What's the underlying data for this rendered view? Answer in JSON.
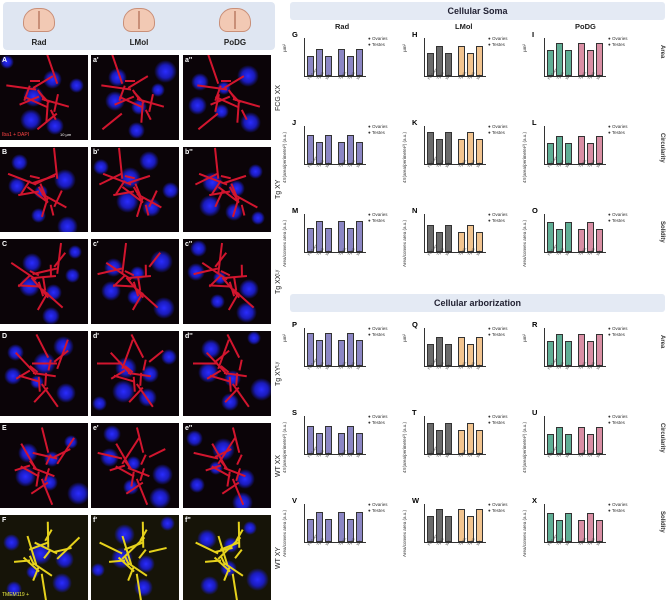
{
  "regions": [
    "Rad",
    "LMol",
    "PoDG"
  ],
  "rows": [
    {
      "letter": "A",
      "sub1": "a'",
      "sub2": "a''",
      "label": "FCG XX"
    },
    {
      "letter": "B",
      "sub1": "b'",
      "sub2": "b''",
      "label": "Tg XY"
    },
    {
      "letter": "C",
      "sub1": "c'",
      "sub2": "c''",
      "label": "Tg XXᴸʸ"
    },
    {
      "letter": "D",
      "sub1": "d'",
      "sub2": "d''",
      "label": "Tg XYᴸʸ"
    },
    {
      "letter": "E",
      "sub1": "e'",
      "sub2": "e''",
      "label": "WT XX"
    },
    {
      "letter": "F",
      "sub1": "f'",
      "sub2": "f''",
      "label": "WT XY"
    }
  ],
  "stain_a": "Iba1 + DAPI",
  "stain_f": "TMEM119 +",
  "scale": "10 µm",
  "sections": {
    "soma": "Cellular Soma",
    "arbor": "Cellular arborization"
  },
  "legend": {
    "ovaries": "Ovaries",
    "testes": "Testes"
  },
  "xticks": [
    "FCG XX",
    "Tg XY",
    "WT",
    "Tg XX",
    "Tg XY",
    "WT"
  ],
  "measures": [
    "Area",
    "Circularity",
    "Solidity",
    "Area",
    "Circularity",
    "Solidity"
  ],
  "ylabels": [
    "µm²",
    "4π(area/perimeter²) (a.u.)",
    "Area/convex area (a.u.)",
    "µm²",
    "4π(area/perimeter²) (a.u.)",
    "Area/convex area (a.u.)"
  ],
  "panels": [
    "G",
    "H",
    "I",
    "J",
    "K",
    "L",
    "M",
    "N",
    "O",
    "P",
    "Q",
    "R",
    "S",
    "T",
    "U",
    "V",
    "W",
    "X"
  ],
  "colors": {
    "rad": "#8b86c4",
    "lmol_o": "#6a6a6a",
    "lmol_t": "#f2c48f",
    "podg_o": "#5fae95",
    "podg_t": "#d98ea4"
  }
}
